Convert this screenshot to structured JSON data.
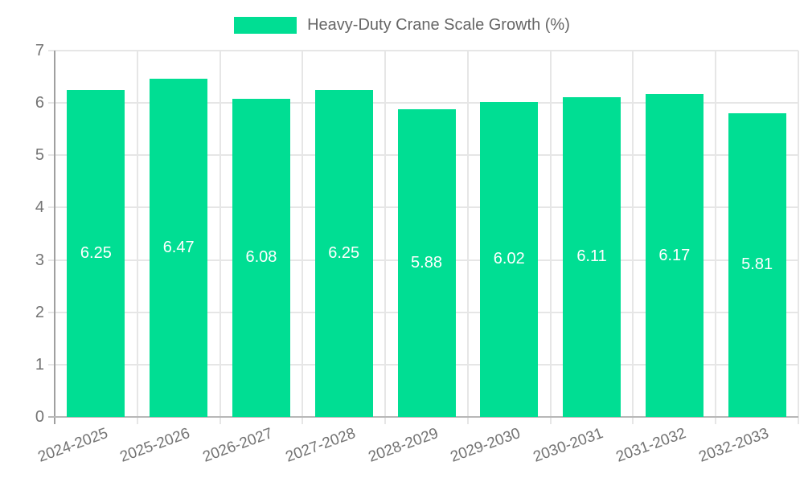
{
  "legend": {
    "label": "Heavy-Duty Crane Scale Growth (%)"
  },
  "chart_data": {
    "type": "bar",
    "title": "Heavy-Duty Crane Scale Growth (%)",
    "categories": [
      "2024-2025",
      "2025-2026",
      "2026-2027",
      "2027-2028",
      "2028-2029",
      "2029-2030",
      "2030-2031",
      "2031-2032",
      "2032-2033"
    ],
    "values": [
      6.25,
      6.47,
      6.08,
      6.25,
      5.88,
      6.02,
      6.11,
      6.17,
      5.81
    ],
    "value_decimals": 2,
    "xlabel": "",
    "ylabel": "",
    "ylim": [
      0,
      7
    ],
    "yticks": [
      0,
      1,
      2,
      3,
      4,
      5,
      6,
      7
    ],
    "grid": true,
    "legend_position": "top-center",
    "colors": {
      "bar": "#00de93",
      "gridline": "#e6e6e6",
      "y_axis_line": "#a0a0a0",
      "x_axis_line": "#b7b7b7",
      "tick_text": "#737373",
      "legend_text": "#666666",
      "value_text": "#ffffff",
      "background": "#ffffff"
    }
  }
}
